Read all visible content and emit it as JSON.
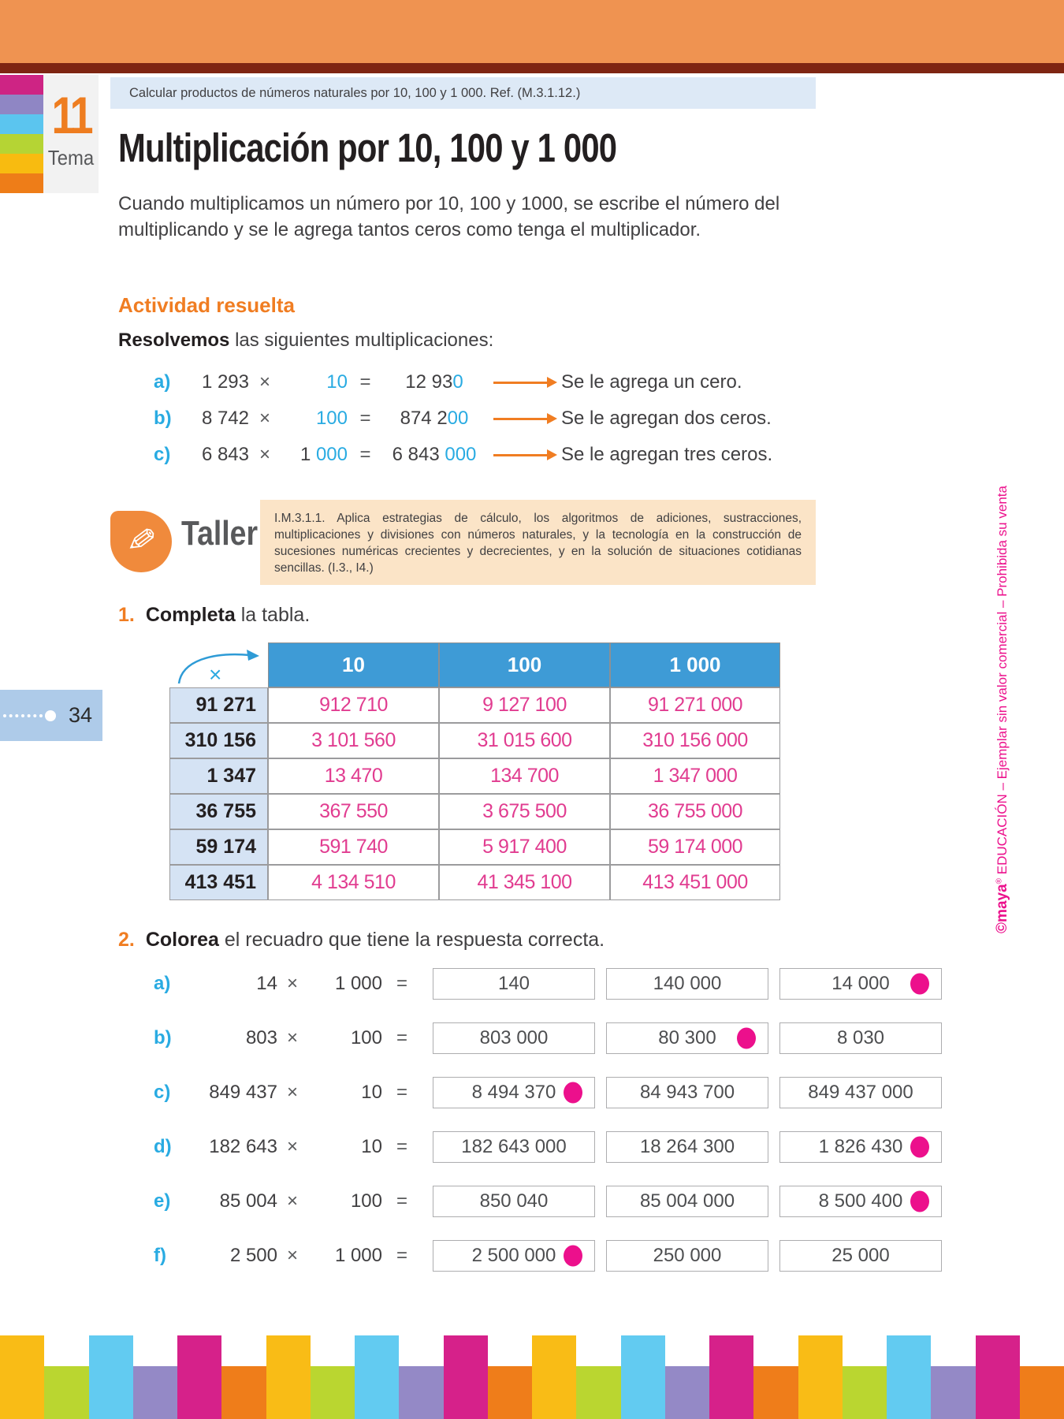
{
  "colors": {
    "top_bar": "#EF9351",
    "maroon_bar": "#7E2512",
    "accent_orange": "#F07D22",
    "accent_blue": "#29ABE2",
    "table_header_blue": "#3E9BD6",
    "table_label_blue": "#D5E3F4",
    "answer_pink": "#E13C90",
    "dot_pink": "#EC108C",
    "taller_peach": "#FBE4C7",
    "badge_blue": "#AECBE9"
  },
  "tema": {
    "number": "11",
    "label": "Tema",
    "tab_colors": [
      "#CE2484",
      "#8F86C4",
      "#5BC5EF",
      "#B5D434",
      "#F8BB10",
      "#EE7D18"
    ]
  },
  "header": {
    "ref_text": "Calcular productos de números naturales por 10, 100 y 1 000. Ref. (M.3.1.12.)",
    "title": "Multiplicación por 10, 100 y 1 000",
    "intro": "Cuando multiplicamos un número por 10, 100 y 1000, se escribe el número del multiplicando y se le agrega tantos ceros como tenga el multiplicador."
  },
  "symbols": {
    "times": "×",
    "equals": "="
  },
  "activity": {
    "heading": "Actividad resuelta",
    "lead_bold": "Resolvemos",
    "lead_rest": " las siguientes multiplicaciones:",
    "examples": [
      {
        "label": "a)",
        "m1": "1 293",
        "m2_black": "",
        "m2_blue": "10",
        "r_black": "12 93",
        "r_blue": "0",
        "note": "Se le agrega un cero."
      },
      {
        "label": "b)",
        "m1": "8 742",
        "m2_black": "",
        "m2_blue": "100",
        "r_black": "874 2",
        "r_blue": "00",
        "note": "Se le agregan dos ceros."
      },
      {
        "label": "c)",
        "m1": "6 843",
        "m2_black": "1 ",
        "m2_blue": "000",
        "r_black": "6 843 ",
        "r_blue": "000",
        "note": "Se le agregan tres ceros."
      }
    ]
  },
  "taller": {
    "label": "Taller",
    "text": "I.M.3.1.1. Aplica estrategias de cálculo, los algoritmos de adiciones, sustracciones, multiplicaciones y divisiones con números naturales, y la tecnología en la construcción de sucesiones numéricas crecientes y decrecientes, y en la solución de situaciones cotidianas sencillas. (I.3., I4.)"
  },
  "exercise1": {
    "number": "1.",
    "bold": "Completa",
    "rest": " la tabla.",
    "table": {
      "corner_symbol": "×",
      "headers": [
        "10",
        "100",
        "1 000"
      ],
      "rows": [
        {
          "label": "91 271",
          "values": [
            "912 710",
            "9 127 100",
            "91 271 000"
          ]
        },
        {
          "label": "310 156",
          "values": [
            "3 101 560",
            "31 015 600",
            "310 156 000"
          ]
        },
        {
          "label": "1 347",
          "values": [
            "13 470",
            "134 700",
            "1 347 000"
          ]
        },
        {
          "label": "36 755",
          "values": [
            "367 550",
            "3 675 500",
            "36 755 000"
          ]
        },
        {
          "label": "59 174",
          "values": [
            "591 740",
            "5 917 400",
            "59 174 000"
          ]
        },
        {
          "label": "413 451",
          "values": [
            "4 134 510",
            "41 345 100",
            "413 451 000"
          ]
        }
      ]
    }
  },
  "exercise2": {
    "number": "2.",
    "bold": "Colorea",
    "rest": " el recuadro que tiene la respuesta correcta.",
    "items": [
      {
        "label": "a)",
        "m1": "14",
        "m2": "1 000",
        "options": [
          {
            "text": "140",
            "dot": false
          },
          {
            "text": "140 000",
            "dot": false
          },
          {
            "text": "14 000",
            "dot": true
          }
        ]
      },
      {
        "label": "b)",
        "m1": "803",
        "m2": "100",
        "options": [
          {
            "text": "803 000",
            "dot": false
          },
          {
            "text": "80 300",
            "dot": true
          },
          {
            "text": "8 030",
            "dot": false
          }
        ]
      },
      {
        "label": "c)",
        "m1": "849 437",
        "m2": "10",
        "options": [
          {
            "text": "8 494 370",
            "dot": true
          },
          {
            "text": "84 943 700",
            "dot": false
          },
          {
            "text": "849 437 000",
            "dot": false
          }
        ]
      },
      {
        "label": "d)",
        "m1": "182 643",
        "m2": "10",
        "options": [
          {
            "text": "182 643 000",
            "dot": false
          },
          {
            "text": "18 264 300",
            "dot": false
          },
          {
            "text": "1 826 430",
            "dot": true
          }
        ]
      },
      {
        "label": "e)",
        "m1": "85 004",
        "m2": "100",
        "options": [
          {
            "text": "850 040",
            "dot": false
          },
          {
            "text": "85 004 000",
            "dot": false
          },
          {
            "text": "8 500 400",
            "dot": true
          }
        ]
      },
      {
        "label": "f)",
        "m1": "2 500",
        "m2": "1 000",
        "options": [
          {
            "text": "2 500 000",
            "dot": true
          },
          {
            "text": "250 000",
            "dot": false
          },
          {
            "text": "25 000",
            "dot": false
          }
        ]
      }
    ]
  },
  "page": {
    "number": "34",
    "margin_brand": "©maya",
    "margin_reg": "®",
    "margin_rest": " EDUCACIÓN – Ejemplar sin valor comercial – Prohibida su venta"
  },
  "footer": {
    "colors": [
      "#F9BC16",
      "#BAD630",
      "#62CBF1",
      "#9489C6",
      "#D6218A",
      "#EF7D1A"
    ],
    "count": 24
  }
}
